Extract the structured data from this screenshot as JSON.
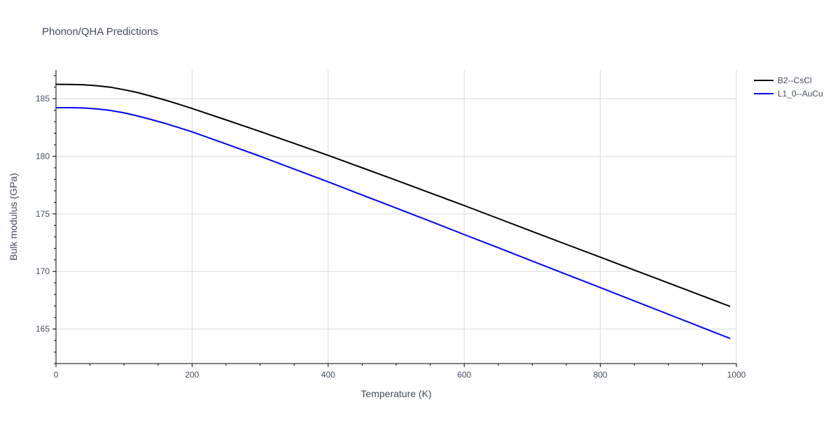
{
  "chart_data": {
    "type": "line",
    "title": "Phonon/QHA Predictions",
    "xlabel": "Temperature (K)",
    "ylabel": "Bulk modulus (GPa)",
    "xlim": [
      0,
      1000
    ],
    "ylim": [
      162,
      187.5
    ],
    "x_ticks": [
      0,
      200,
      400,
      600,
      800,
      1000
    ],
    "y_ticks": [
      165,
      170,
      175,
      180,
      185
    ],
    "grid": true,
    "legend_position": "top-right",
    "series": [
      {
        "name": "B2--CsCl",
        "color": "#000000",
        "x": [
          0,
          20,
          40,
          60,
          80,
          100,
          120,
          140,
          160,
          180,
          200,
          250,
          300,
          350,
          400,
          450,
          500,
          550,
          600,
          650,
          700,
          750,
          800,
          850,
          900,
          950,
          990
        ],
        "y": [
          186.25,
          186.24,
          186.21,
          186.13,
          186.0,
          185.78,
          185.53,
          185.22,
          184.89,
          184.53,
          184.15,
          183.16,
          182.15,
          181.12,
          180.08,
          179.0,
          177.92,
          176.82,
          175.72,
          174.6,
          173.47,
          172.35,
          171.24,
          170.12,
          169.0,
          167.88,
          166.98
        ]
      },
      {
        "name": "L1_0--AuCu",
        "color": "#0000ff",
        "x": [
          0,
          20,
          40,
          60,
          80,
          100,
          120,
          140,
          160,
          180,
          200,
          250,
          300,
          350,
          400,
          450,
          500,
          550,
          600,
          650,
          700,
          750,
          800,
          850,
          900,
          950,
          990
        ],
        "y": [
          184.22,
          184.22,
          184.2,
          184.12,
          183.98,
          183.77,
          183.5,
          183.19,
          182.86,
          182.5,
          182.12,
          181.07,
          180.0,
          178.89,
          177.78,
          176.64,
          175.5,
          174.36,
          173.2,
          172.06,
          170.9,
          169.75,
          168.6,
          167.44,
          166.28,
          165.12,
          164.2
        ]
      }
    ]
  }
}
